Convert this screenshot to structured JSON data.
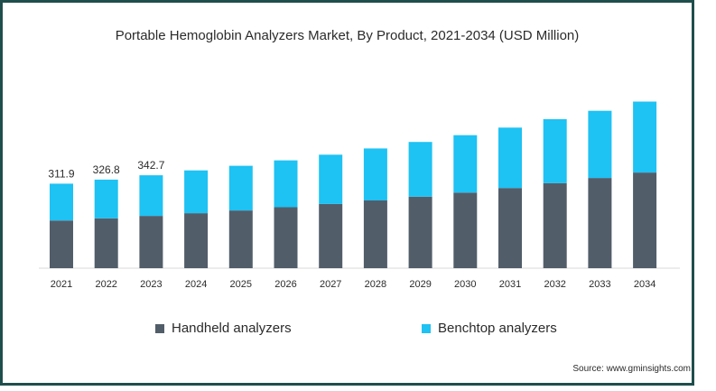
{
  "colors": {
    "handheld": "#525d6a",
    "benchtop": "#1ec2f3",
    "border": "#1f4e4c"
  },
  "chart_data": {
    "type": "bar",
    "stacked": true,
    "title": "Portable Hemoglobin Analyzers Market, By Product, 2021-2034 (USD Million)",
    "categories": [
      "2021",
      "2022",
      "2023",
      "2024",
      "2025",
      "2026",
      "2027",
      "2028",
      "2029",
      "2030",
      "2031",
      "2032",
      "2033",
      "2034"
    ],
    "series": [
      {
        "name": "Handheld analyzers",
        "values": [
          176,
          184,
          193,
          203,
          213,
          225,
          237,
          250,
          264,
          279,
          296,
          314,
          333,
          353
        ]
      },
      {
        "name": "Benchtop analyzers",
        "values": [
          136,
          143,
          150,
          158,
          165,
          173,
          182,
          192,
          202,
          212,
          223,
          236,
          248,
          262
        ]
      }
    ],
    "totals_labels": [
      "311.9",
      "326.8",
      "342.7"
    ],
    "legend_position": "bottom",
    "grid": false
  },
  "source": "Source: www.gminsights.com"
}
